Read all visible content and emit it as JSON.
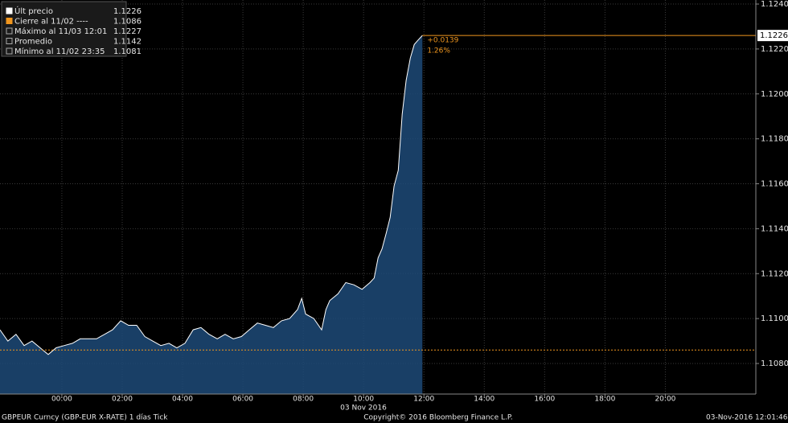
{
  "chart_data": {
    "type": "area",
    "series": [
      {
        "name": "Últ precio",
        "color": "#ffffff",
        "fill": "#1d4a78",
        "x": [
          -2.05,
          -1.79,
          -1.52,
          -1.25,
          -0.99,
          -0.72,
          -0.45,
          -0.19,
          0.08,
          0.35,
          0.61,
          1.15,
          1.68,
          1.95,
          2.21,
          2.48,
          2.75,
          3.01,
          3.28,
          3.55,
          3.81,
          4.08,
          4.35,
          4.61,
          4.88,
          5.15,
          5.41,
          5.68,
          5.95,
          6.21,
          6.48,
          6.75,
          7.01,
          7.28,
          7.55,
          7.81,
          7.95,
          8.08,
          8.35,
          8.61,
          8.75,
          8.88,
          9.15,
          9.41,
          9.68,
          9.95,
          10.21,
          10.35,
          10.48,
          10.61,
          10.75,
          10.88,
          11.01,
          11.15,
          11.28,
          11.41,
          11.55,
          11.68,
          11.81,
          11.95
        ],
        "values": [
          1.1095,
          1.109,
          1.1093,
          1.1088,
          1.109,
          1.1087,
          1.1084,
          1.1087,
          1.1088,
          1.1089,
          1.1091,
          1.1091,
          1.1095,
          1.1099,
          1.1097,
          1.1097,
          1.1092,
          1.109,
          1.1088,
          1.1089,
          1.1087,
          1.1089,
          1.1095,
          1.1096,
          1.1093,
          1.1091,
          1.1093,
          1.1091,
          1.1092,
          1.1095,
          1.1098,
          1.1097,
          1.1096,
          1.1099,
          1.11,
          1.1104,
          1.1109,
          1.1102,
          1.11,
          1.1095,
          1.1104,
          1.1108,
          1.1111,
          1.1116,
          1.1115,
          1.1113,
          1.1116,
          1.1118,
          1.1127,
          1.1131,
          1.1138,
          1.1145,
          1.1159,
          1.1166,
          1.1191,
          1.1206,
          1.1216,
          1.1222,
          1.1224,
          1.1226
        ]
      }
    ],
    "legend": [
      {
        "label": "Últ precio",
        "value": 1.1226
      },
      {
        "label": "Cierre al 11/02 ----",
        "value": 1.1086
      },
      {
        "label": "Máximo al 11/03 12:01",
        "value": 1.1227
      },
      {
        "label": "Promedio",
        "value": 1.1142
      },
      {
        "label": "Mínimo al 11/02 23:35",
        "value": 1.1081
      }
    ],
    "change_label": "+0.0139",
    "change_pct_label": "1.26%",
    "date_label": "03 Nov 2016",
    "xlim": [
      -2.05,
      23.0
    ],
    "xticks": [
      {
        "value": 0,
        "label": "00:00"
      },
      {
        "value": 2,
        "label": "02:00"
      },
      {
        "value": 4,
        "label": "04:00"
      },
      {
        "value": 6,
        "label": "06:00"
      },
      {
        "value": 8,
        "label": "08:00"
      },
      {
        "value": 10,
        "label": "10:00"
      },
      {
        "value": 12,
        "label": "12:00"
      },
      {
        "value": 14,
        "label": "14:00"
      },
      {
        "value": 16,
        "label": "16:00"
      },
      {
        "value": 18,
        "label": "18:00"
      },
      {
        "value": 20,
        "label": "20:00"
      }
    ],
    "ylim": [
      1.10664,
      1.12418
    ],
    "yticks": [
      {
        "value": 1.108,
        "label": "1.1080"
      },
      {
        "value": 1.11,
        "label": "1.1100"
      },
      {
        "value": 1.112,
        "label": "1.1120"
      },
      {
        "value": 1.114,
        "label": "1.1140"
      },
      {
        "value": 1.116,
        "label": "1.1160"
      },
      {
        "value": 1.118,
        "label": "1.1180"
      },
      {
        "value": 1.12,
        "label": "1.1200"
      },
      {
        "value": 1.122,
        "label": "1.1220"
      },
      {
        "value": 1.124,
        "label": "1.1240"
      }
    ],
    "grid": true,
    "close_line_color": "#f0961e",
    "footer_left": "GBPEUR Curncy (GBP-EUR X-RATE) 1 días  Tick",
    "footer_center": "Copyright© 2016 Bloomberg Finance L.P.",
    "footer_right": "03-Nov-2016 12:01:46"
  }
}
